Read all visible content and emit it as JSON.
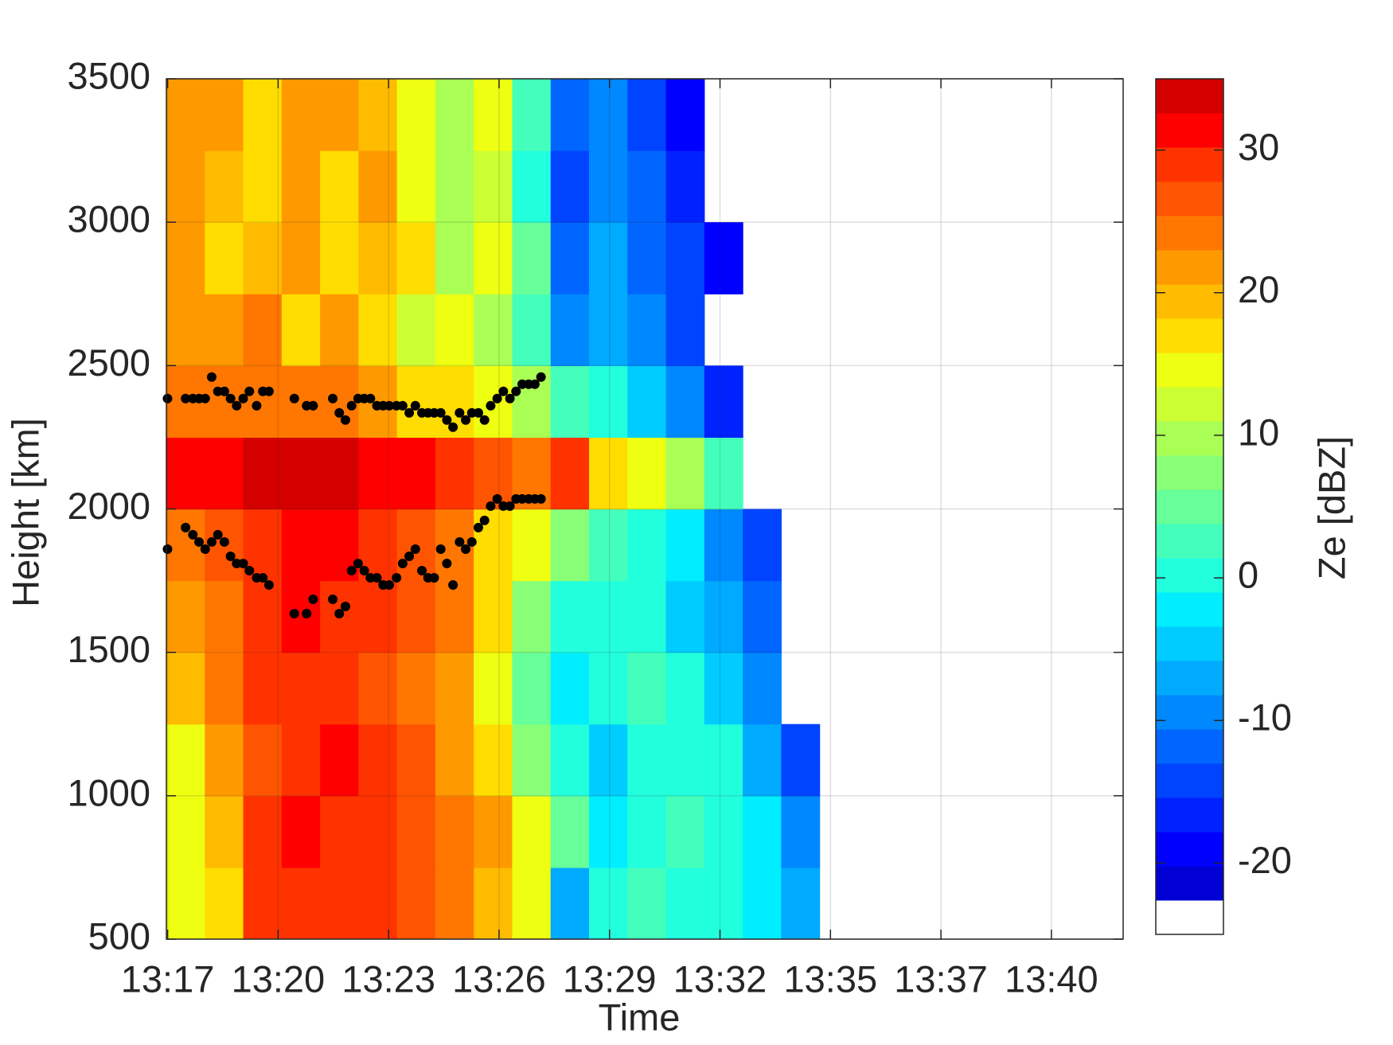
{
  "chart_data": {
    "type": "heatmap",
    "xlabel": "Time",
    "ylabel": "Height [km]",
    "xlim": [
      797.3,
      822.2
    ],
    "xticks": [
      {
        "value": 797.333,
        "label": "13:17"
      },
      {
        "value": 800.208,
        "label": "13:20"
      },
      {
        "value": 803.083,
        "label": "13:23"
      },
      {
        "value": 805.958,
        "label": "13:26"
      },
      {
        "value": 808.833,
        "label": "13:29"
      },
      {
        "value": 811.708,
        "label": "13:32"
      },
      {
        "value": 814.583,
        "label": "13:35"
      },
      {
        "value": 817.458,
        "label": "13:37"
      },
      {
        "value": 820.333,
        "label": "13:40"
      }
    ],
    "ylim": [
      500,
      3500
    ],
    "yticks": [
      500,
      1000,
      1500,
      2000,
      2500,
      3000,
      3500
    ],
    "grid": true,
    "x": [
      797.8,
      798.8,
      799.8,
      800.8,
      801.8,
      802.8,
      803.8,
      804.8,
      805.8,
      806.8,
      807.8,
      808.8,
      809.8,
      810.8,
      811.8,
      812.8,
      813.8,
      814.8,
      815.8,
      816.8,
      817.8,
      818.8,
      819.8,
      820.8,
      821.8
    ],
    "y": [
      625,
      875,
      1125,
      1375,
      1625,
      1875,
      2125,
      2375,
      2625,
      2875,
      3125,
      3375
    ],
    "z": [
      [
        15,
        18,
        28,
        30,
        30,
        29,
        26,
        23,
        20,
        14,
        -8,
        0,
        2,
        0,
        1,
        -2,
        -6,
        null,
        null,
        null,
        null,
        null,
        null,
        null,
        null
      ],
      [
        14,
        20,
        28,
        31,
        30,
        29,
        27,
        24,
        21,
        15,
        4,
        -3,
        1,
        2,
        0,
        -2,
        -10,
        null,
        null,
        null,
        null,
        null,
        null,
        null,
        null
      ],
      [
        15,
        22,
        27,
        30,
        31,
        28,
        26,
        22,
        17,
        8,
        0,
        -4,
        0,
        1,
        -1,
        -6,
        -14,
        null,
        null,
        null,
        null,
        null,
        null,
        null,
        null
      ],
      [
        19,
        23,
        28,
        30,
        30,
        27,
        25,
        22,
        15,
        6,
        -3,
        0,
        2,
        0,
        -5,
        -10,
        null,
        null,
        null,
        null,
        null,
        null,
        null,
        null,
        null
      ],
      [
        21,
        24,
        29,
        31,
        30,
        28,
        26,
        23,
        16,
        7,
        0,
        -1,
        1,
        -4,
        -8,
        -12,
        null,
        null,
        null,
        null,
        null,
        null,
        null,
        null,
        null
      ],
      [
        24,
        27,
        29,
        32,
        31,
        29,
        27,
        25,
        18,
        14,
        8,
        2,
        0,
        -3,
        -9,
        -14,
        null,
        null,
        null,
        null,
        null,
        null,
        null,
        null,
        null
      ],
      [
        31,
        32,
        33,
        34,
        33,
        32,
        31,
        30,
        26,
        24,
        28,
        16,
        15,
        10,
        2,
        null,
        null,
        null,
        null,
        null,
        null,
        null,
        null,
        null,
        null
      ],
      [
        25,
        24,
        23,
        25,
        24,
        22,
        18,
        16,
        14,
        10,
        2,
        0,
        -5,
        -10,
        -16,
        null,
        null,
        null,
        null,
        null,
        null,
        null,
        null,
        null,
        null
      ],
      [
        22,
        21,
        23,
        17,
        21,
        18,
        12,
        15,
        10,
        3,
        -10,
        -6,
        -10,
        -14,
        null,
        null,
        null,
        null,
        null,
        null,
        null,
        null,
        null,
        null,
        null
      ],
      [
        21,
        18,
        20,
        22,
        17,
        20,
        16,
        10,
        14,
        4,
        -12,
        -6,
        -11,
        -15,
        -20,
        null,
        null,
        null,
        null,
        null,
        null,
        null,
        null,
        null,
        null
      ],
      [
        22,
        20,
        17,
        21,
        16,
        21,
        15,
        9,
        13,
        0,
        -14,
        -10,
        -12,
        -17,
        null,
        null,
        null,
        null,
        null,
        null,
        null,
        null,
        null,
        null,
        null
      ],
      [
        21,
        22,
        17,
        21,
        22,
        20,
        15,
        10,
        14,
        2,
        -12,
        -10,
        -14,
        -18,
        null,
        null,
        null,
        null,
        null,
        null,
        null,
        null,
        null,
        null,
        null
      ]
    ],
    "colorbar": {
      "label": "Ze [dBZ]",
      "lim": [
        -25,
        35
      ],
      "ticks": [
        -20,
        -10,
        0,
        10,
        20,
        30
      ],
      "colors": [
        "#ffffff",
        "#0000d4",
        "#0000ff",
        "#0022ff",
        "#0044ff",
        "#0066ff",
        "#0088ff",
        "#00aaff",
        "#00ccff",
        "#00eeff",
        "#22ffdd",
        "#44ffbb",
        "#66ff99",
        "#88ff77",
        "#aaff55",
        "#ccff33",
        "#eeff11",
        "#ffdd00",
        "#ffbb00",
        "#ff9900",
        "#ff7700",
        "#ff5500",
        "#ff3300",
        "#ff0000",
        "#d40000"
      ]
    },
    "markers": [
      {
        "color": "#000000",
        "x": [
          797.33,
          797.8,
          797.99,
          798.15,
          798.31,
          798.48,
          798.64,
          798.81,
          798.97,
          799.13,
          799.3,
          799.46,
          799.65,
          799.81,
          799.97,
          800.63,
          800.95,
          801.12,
          801.63,
          801.8,
          801.96,
          802.12,
          802.29,
          802.45,
          802.61,
          802.78,
          802.94,
          803.1,
          803.29,
          803.45,
          803.62,
          803.78,
          803.95,
          804.11,
          804.27,
          804.44,
          804.6,
          804.76,
          804.93,
          805.09,
          805.25,
          805.42,
          805.58,
          805.74,
          805.91,
          806.07,
          806.24,
          806.4,
          806.56,
          806.73,
          806.89,
          807.05
        ],
        "values": [
          2385,
          2385,
          2385,
          2385,
          2385,
          2460,
          2410,
          2410,
          2385,
          2360,
          2385,
          2410,
          2360,
          2410,
          2410,
          2385,
          2360,
          2360,
          2385,
          2335,
          2310,
          2360,
          2385,
          2385,
          2385,
          2360,
          2360,
          2360,
          2360,
          2360,
          2335,
          2360,
          2335,
          2335,
          2335,
          2335,
          2310,
          2285,
          2335,
          2310,
          2335,
          2335,
          2310,
          2360,
          2385,
          2410,
          2385,
          2410,
          2435,
          2435,
          2435,
          2460
        ]
      },
      {
        "color": "#000000",
        "x": [
          797.33,
          797.8,
          797.99,
          798.15,
          798.31,
          798.48,
          798.64,
          798.81,
          798.97,
          799.13,
          799.3,
          799.46,
          799.65,
          799.81,
          799.97,
          800.63,
          800.95,
          801.12,
          801.63,
          801.8,
          801.96,
          802.12,
          802.29,
          802.45,
          802.61,
          802.78,
          802.94,
          803.1,
          803.29,
          803.45,
          803.62,
          803.78,
          803.95,
          804.11,
          804.27,
          804.44,
          804.6,
          804.76,
          804.93,
          805.09,
          805.25,
          805.42,
          805.58,
          805.74,
          805.91,
          806.07,
          806.24,
          806.4,
          806.56,
          806.73,
          806.89,
          807.05
        ],
        "values": [
          1860,
          1935,
          1910,
          1885,
          1860,
          1885,
          1910,
          1885,
          1835,
          1810,
          1810,
          1785,
          1760,
          1760,
          1735,
          1635,
          1635,
          1685,
          1685,
          1635,
          1660,
          1785,
          1810,
          1785,
          1760,
          1760,
          1735,
          1735,
          1760,
          1810,
          1835,
          1860,
          1785,
          1760,
          1760,
          1860,
          1810,
          1735,
          1885,
          1860,
          1885,
          1935,
          1960,
          2010,
          2035,
          2010,
          2010,
          2035,
          2035,
          2035,
          2035,
          2035
        ]
      }
    ]
  }
}
